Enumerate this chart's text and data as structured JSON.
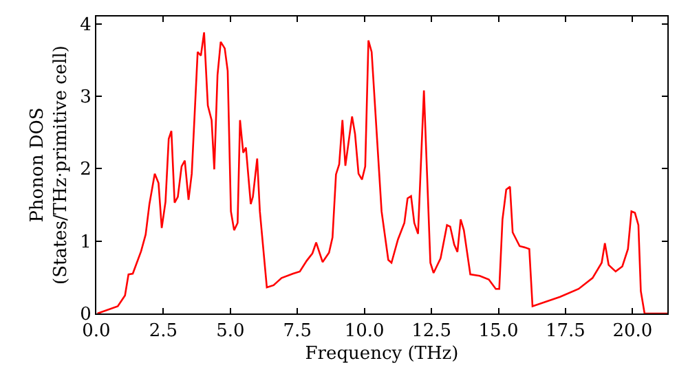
{
  "chart_data": {
    "type": "line",
    "xlabel": "Frequency (THz)",
    "ylabel": "Phonon DOS\n(States/THz·primitive cell)",
    "xlim": [
      0,
      21.3
    ],
    "ylim": [
      0,
      4.1
    ],
    "xticks": [
      {
        "value": 0,
        "label": "0.0"
      },
      {
        "value": 2.5,
        "label": "2.5"
      },
      {
        "value": 5,
        "label": "5.0"
      },
      {
        "value": 7.5,
        "label": "7.5"
      },
      {
        "value": 10,
        "label": "10.0"
      },
      {
        "value": 12.5,
        "label": "12.5"
      },
      {
        "value": 15,
        "label": "15.0"
      },
      {
        "value": 17.5,
        "label": "17.5"
      },
      {
        "value": 20,
        "label": "20.0"
      }
    ],
    "yticks": [
      0,
      1,
      2,
      3,
      4
    ],
    "marker": "none",
    "line_style": "solid",
    "series": [
      {
        "color": "#ff0000",
        "x": [
          0.04,
          0.8,
          1.07,
          1.2,
          1.36,
          1.67,
          1.84,
          1.98,
          2.18,
          2.32,
          2.44,
          2.58,
          2.7,
          2.8,
          2.92,
          3.04,
          3.18,
          3.3,
          3.44,
          3.56,
          3.78,
          3.9,
          4.02,
          4.16,
          4.3,
          4.4,
          4.52,
          4.64,
          4.79,
          4.9,
          5.02,
          5.14,
          5.27,
          5.36,
          5.48,
          5.58,
          5.76,
          5.84,
          6.0,
          6.1,
          6.36,
          6.61,
          6.91,
          7.34,
          7.59,
          7.85,
          8.06,
          8.2,
          8.44,
          8.68,
          8.81,
          8.94,
          9.06,
          9.18,
          9.29,
          9.54,
          9.65,
          9.78,
          9.91,
          10.03,
          10.15,
          10.27,
          10.64,
          10.89,
          11.01,
          11.25,
          11.49,
          11.61,
          11.74,
          11.86,
          12.0,
          12.22,
          12.46,
          12.58,
          12.84,
          13.08,
          13.2,
          13.35,
          13.47,
          13.59,
          13.71,
          13.95,
          14.3,
          14.64,
          14.9,
          15.03,
          15.15,
          15.29,
          15.43,
          15.53,
          15.79,
          16.01,
          16.15,
          16.27,
          17.3,
          17.99,
          18.51,
          18.85,
          18.97,
          19.11,
          19.37,
          19.62,
          19.83,
          19.96,
          20.09,
          20.22,
          20.31,
          20.45,
          21.3
        ],
        "values": [
          0,
          0.1,
          0.25,
          0.54,
          0.55,
          0.86,
          1.09,
          1.51,
          1.93,
          1.8,
          1.18,
          1.54,
          2.41,
          2.52,
          1.53,
          1.61,
          2.03,
          2.11,
          1.57,
          1.93,
          3.61,
          3.56,
          3.88,
          2.87,
          2.67,
          1.99,
          3.29,
          3.75,
          3.66,
          3.35,
          1.41,
          1.15,
          1.25,
          2.67,
          2.22,
          2.29,
          1.51,
          1.61,
          2.14,
          1.41,
          0.36,
          0.39,
          0.49,
          0.55,
          0.58,
          0.73,
          0.83,
          0.98,
          0.71,
          0.84,
          1.05,
          1.92,
          2.06,
          2.67,
          2.04,
          2.72,
          2.48,
          1.93,
          1.85,
          2.03,
          3.77,
          3.61,
          1.41,
          0.74,
          0.7,
          1.02,
          1.25,
          1.59,
          1.62,
          1.25,
          1.1,
          3.08,
          0.7,
          0.56,
          0.76,
          1.22,
          1.2,
          0.95,
          0.85,
          1.3,
          1.15,
          0.54,
          0.52,
          0.47,
          0.34,
          0.34,
          1.3,
          1.71,
          1.75,
          1.12,
          0.93,
          0.91,
          0.89,
          0.1,
          0.23,
          0.34,
          0.49,
          0.7,
          0.97,
          0.67,
          0.58,
          0.65,
          0.89,
          1.41,
          1.39,
          1.22,
          0.31,
          0,
          0
        ]
      }
    ]
  }
}
